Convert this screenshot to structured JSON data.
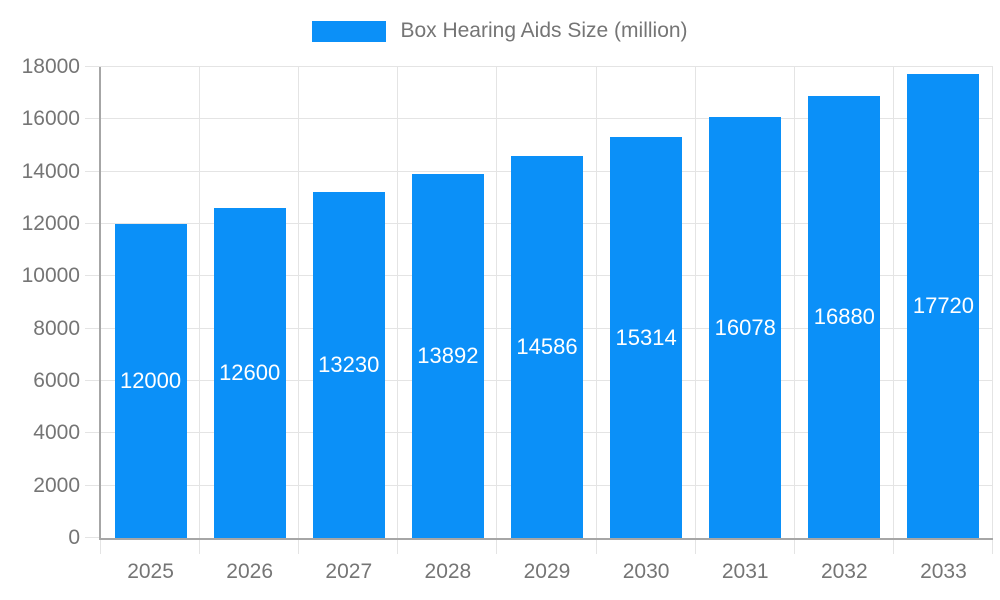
{
  "chart_data": {
    "type": "bar",
    "title": "",
    "legend": {
      "label": "Box Hearing Aids Size (million)",
      "position": "top"
    },
    "categories": [
      "2025",
      "2026",
      "2027",
      "2028",
      "2029",
      "2030",
      "2031",
      "2032",
      "2033"
    ],
    "values": [
      12000,
      12600,
      13230,
      13892,
      14586,
      15314,
      16078,
      16880,
      17720
    ],
    "xlabel": "",
    "ylabel": "",
    "ylim": [
      0,
      18000
    ],
    "ytick_step": 2000,
    "ytick_labels": [
      "0",
      "2000",
      "4000",
      "6000",
      "8000",
      "10000",
      "12000",
      "14000",
      "16000",
      "18000"
    ],
    "grid": true,
    "value_label_position": "inside-center"
  },
  "colors": {
    "background": "#ffffff",
    "bar": "#0b90f8",
    "axis_line": "#a6a6a6",
    "gridline": "#e4e4e4",
    "tick_text": "#757575",
    "legend_text": "#757575",
    "bar_label_text": "#ffffff"
  }
}
